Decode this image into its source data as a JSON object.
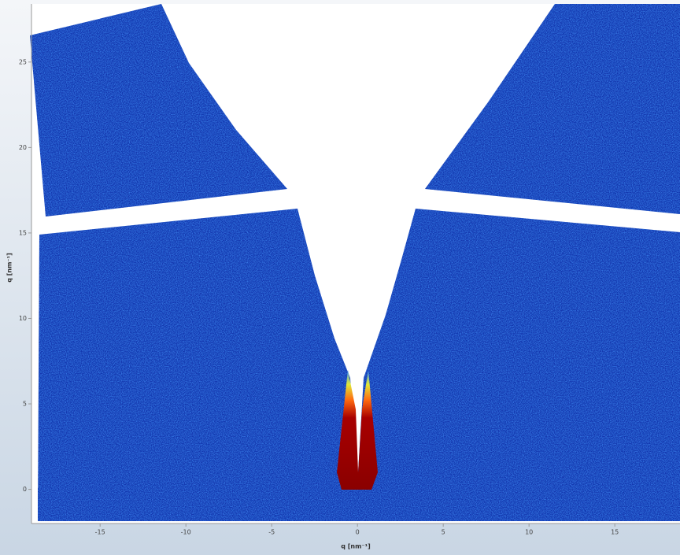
{
  "chart_data": {
    "type": "image",
    "xlabel": "q [nm⁻¹]",
    "ylabel": "q [nm⁻¹]",
    "xlim": [
      -19,
      18.8
    ],
    "ylim": [
      -2,
      28.4
    ],
    "xticks": [
      -15,
      -10,
      -5,
      0,
      5,
      10,
      15
    ],
    "yticks": [
      0,
      5,
      10,
      15,
      20,
      25
    ]
  }
}
